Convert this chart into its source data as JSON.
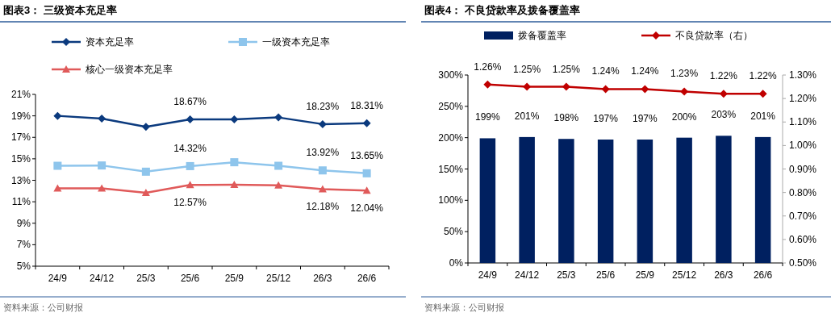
{
  "chart_data": [
    {
      "type": "line",
      "title": "图表3：  三级资本充足率",
      "categories": [
        "24/9",
        "24/12",
        "25/3",
        "25/6",
        "25/9",
        "25/12",
        "26/3",
        "26/6"
      ],
      "series": [
        {
          "name": "资本充足率",
          "color": "#0b3a7e",
          "marker": "diamond",
          "values": [
            19.0,
            18.75,
            17.98,
            18.67,
            18.67,
            18.85,
            18.23,
            18.31
          ],
          "value_labels": [
            null,
            null,
            null,
            "18.67%",
            null,
            null,
            "18.23%",
            "18.31%"
          ]
        },
        {
          "name": "一级资本充足率",
          "color": "#8ec5ec",
          "marker": "square",
          "values": [
            14.35,
            14.38,
            13.8,
            14.32,
            14.68,
            14.35,
            13.92,
            13.65
          ],
          "value_labels": [
            null,
            null,
            null,
            "14.32%",
            null,
            null,
            "13.92%",
            "13.65%"
          ]
        },
        {
          "name": "核心一级资本充足率",
          "color": "#e05a5a",
          "marker": "triangle",
          "values": [
            12.25,
            12.25,
            11.83,
            12.57,
            12.58,
            12.53,
            12.18,
            12.04
          ],
          "value_labels": [
            null,
            null,
            null,
            "12.57%",
            null,
            null,
            "12.18%",
            "12.04%"
          ]
        }
      ],
      "ylim": [
        5,
        21
      ],
      "yticks": [
        {
          "value": 5,
          "label": "5%"
        },
        {
          "value": 7,
          "label": "7%"
        },
        {
          "value": 9,
          "label": "9%"
        },
        {
          "value": 11,
          "label": "11%"
        },
        {
          "value": 13,
          "label": "13%"
        },
        {
          "value": 15,
          "label": "15%"
        },
        {
          "value": 17,
          "label": "17%"
        },
        {
          "value": 19,
          "label": "19%"
        },
        {
          "value": 21,
          "label": "21%"
        }
      ],
      "legend": "top",
      "annotations": [
        "资料来源：公司财报"
      ]
    },
    {
      "type": "bar",
      "title": "图表4：  不良贷款率及拨备覆盖率",
      "categories": [
        "24/9",
        "24/12",
        "25/3",
        "25/6",
        "25/9",
        "25/12",
        "26/3",
        "26/6"
      ],
      "series": [
        {
          "name": "拨备覆盖率",
          "color": "#002060",
          "values": [
            199,
            201,
            198,
            197,
            197,
            200,
            203,
            201
          ],
          "value_labels": [
            "199%",
            "201%",
            "198%",
            "197%",
            "197%",
            "200%",
            "203%",
            "201%"
          ]
        },
        {
          "name": "不良贷款率（右）",
          "type": "line",
          "axis": "y2",
          "marker": "diamond",
          "color": "#c00000",
          "values": [
            1.26,
            1.25,
            1.25,
            1.24,
            1.24,
            1.23,
            1.22,
            1.22
          ],
          "value_labels": [
            "1.26%",
            "1.25%",
            "1.25%",
            "1.24%",
            "1.24%",
            "1.23%",
            "1.22%",
            "1.22%"
          ]
        }
      ],
      "ylim": [
        0,
        300
      ],
      "yticks": [
        {
          "value": 0,
          "label": "0%"
        },
        {
          "value": 50,
          "label": "50%"
        },
        {
          "value": 100,
          "label": "100%"
        },
        {
          "value": 150,
          "label": "150%"
        },
        {
          "value": 200,
          "label": "200%"
        },
        {
          "value": 250,
          "label": "250%"
        },
        {
          "value": 300,
          "label": "300%"
        }
      ],
      "y2lim": [
        0.5,
        1.3
      ],
      "y2ticks": [
        {
          "value": 0.5,
          "label": "0.50%"
        },
        {
          "value": 0.6,
          "label": "0.60%"
        },
        {
          "value": 0.7,
          "label": "0.70%"
        },
        {
          "value": 0.8,
          "label": "0.80%"
        },
        {
          "value": 0.9,
          "label": "0.90%"
        },
        {
          "value": 1.0,
          "label": "1.00%"
        },
        {
          "value": 1.1,
          "label": "1.10%"
        },
        {
          "value": 1.2,
          "label": "1.20%"
        },
        {
          "value": 1.3,
          "label": "1.30%"
        }
      ],
      "legend": "top",
      "annotations": [
        "资料来源：公司财报"
      ]
    }
  ]
}
